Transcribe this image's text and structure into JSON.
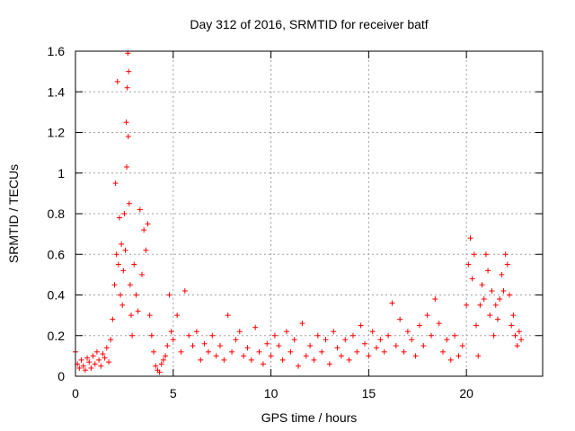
{
  "chart_data": {
    "type": "scatter",
    "title": "Day 312 of 2016, SRMTID for receiver batf",
    "xlabel": "GPS time / hours",
    "ylabel": "SRMTID / TECUs",
    "xlim": [
      0,
      23.9
    ],
    "ylim": [
      0,
      1.6
    ],
    "x_ticks": [
      0,
      5,
      10,
      15,
      20
    ],
    "x_tick_labels": [
      "0",
      "5",
      "10",
      "15",
      "20"
    ],
    "y_ticks": [
      0,
      0.2,
      0.4,
      0.6,
      0.8,
      1,
      1.2,
      1.4,
      1.6
    ],
    "y_tick_labels": [
      "0",
      "0.2",
      "0.4",
      "0.6",
      "0.8",
      "1",
      "1.2",
      "1.4",
      "1.6"
    ],
    "grid": true,
    "marker": "+",
    "color": "#ff0000",
    "series": [
      {
        "name": "SRMTID",
        "points": [
          [
            0.0,
            0.12
          ],
          [
            0.1,
            0.06
          ],
          [
            0.2,
            0.04
          ],
          [
            0.3,
            0.08
          ],
          [
            0.4,
            0.05
          ],
          [
            0.5,
            0.03
          ],
          [
            0.6,
            0.09
          ],
          [
            0.7,
            0.07
          ],
          [
            0.8,
            0.04
          ],
          [
            0.9,
            0.1
          ],
          [
            1.0,
            0.06
          ],
          [
            1.1,
            0.12
          ],
          [
            1.2,
            0.08
          ],
          [
            1.3,
            0.05
          ],
          [
            1.4,
            0.11
          ],
          [
            1.5,
            0.09
          ],
          [
            1.6,
            0.14
          ],
          [
            1.7,
            0.07
          ],
          [
            1.8,
            0.18
          ],
          [
            1.9,
            0.28
          ],
          [
            2.0,
            0.45
          ],
          [
            2.05,
            0.95
          ],
          [
            2.1,
            0.6
          ],
          [
            2.15,
            1.45
          ],
          [
            2.2,
            0.55
          ],
          [
            2.25,
            0.78
          ],
          [
            2.3,
            0.4
          ],
          [
            2.35,
            0.65
          ],
          [
            2.4,
            0.35
          ],
          [
            2.45,
            0.52
          ],
          [
            2.5,
            0.8
          ],
          [
            2.55,
            0.62
          ],
          [
            2.6,
            1.25
          ],
          [
            2.62,
            1.03
          ],
          [
            2.65,
            1.42
          ],
          [
            2.68,
            1.59
          ],
          [
            2.7,
            1.18
          ],
          [
            2.72,
            1.5
          ],
          [
            2.75,
            0.85
          ],
          [
            2.8,
            0.45
          ],
          [
            2.85,
            0.3
          ],
          [
            2.9,
            0.2
          ],
          [
            3.0,
            0.55
          ],
          [
            3.1,
            0.4
          ],
          [
            3.2,
            0.32
          ],
          [
            3.3,
            0.82
          ],
          [
            3.4,
            0.5
          ],
          [
            3.5,
            0.72
          ],
          [
            3.6,
            0.62
          ],
          [
            3.7,
            0.75
          ],
          [
            3.8,
            0.3
          ],
          [
            3.9,
            0.2
          ],
          [
            4.0,
            0.12
          ],
          [
            4.1,
            0.05
          ],
          [
            4.2,
            0.03
          ],
          [
            4.3,
            0.02
          ],
          [
            4.4,
            0.06
          ],
          [
            4.5,
            0.08
          ],
          [
            4.6,
            0.1
          ],
          [
            4.7,
            0.15
          ],
          [
            4.8,
            0.4
          ],
          [
            4.9,
            0.22
          ],
          [
            5.0,
            0.18
          ],
          [
            5.2,
            0.3
          ],
          [
            5.4,
            0.12
          ],
          [
            5.6,
            0.42
          ],
          [
            5.8,
            0.2
          ],
          [
            6.0,
            0.15
          ],
          [
            6.2,
            0.22
          ],
          [
            6.4,
            0.08
          ],
          [
            6.6,
            0.16
          ],
          [
            6.8,
            0.12
          ],
          [
            7.0,
            0.2
          ],
          [
            7.2,
            0.1
          ],
          [
            7.4,
            0.15
          ],
          [
            7.6,
            0.08
          ],
          [
            7.8,
            0.3
          ],
          [
            8.0,
            0.12
          ],
          [
            8.2,
            0.18
          ],
          [
            8.4,
            0.22
          ],
          [
            8.6,
            0.1
          ],
          [
            8.8,
            0.14
          ],
          [
            9.0,
            0.08
          ],
          [
            9.2,
            0.24
          ],
          [
            9.4,
            0.12
          ],
          [
            9.6,
            0.06
          ],
          [
            9.8,
            0.16
          ],
          [
            10.0,
            0.1
          ],
          [
            10.2,
            0.2
          ],
          [
            10.4,
            0.15
          ],
          [
            10.6,
            0.08
          ],
          [
            10.8,
            0.22
          ],
          [
            11.0,
            0.12
          ],
          [
            11.2,
            0.18
          ],
          [
            11.4,
            0.05
          ],
          [
            11.6,
            0.26
          ],
          [
            11.8,
            0.1
          ],
          [
            12.0,
            0.15
          ],
          [
            12.2,
            0.08
          ],
          [
            12.4,
            0.2
          ],
          [
            12.6,
            0.12
          ],
          [
            12.8,
            0.18
          ],
          [
            13.0,
            0.06
          ],
          [
            13.2,
            0.22
          ],
          [
            13.4,
            0.14
          ],
          [
            13.6,
            0.1
          ],
          [
            13.8,
            0.18
          ],
          [
            14.0,
            0.08
          ],
          [
            14.2,
            0.2
          ],
          [
            14.4,
            0.12
          ],
          [
            14.6,
            0.25
          ],
          [
            14.8,
            0.16
          ],
          [
            15.0,
            0.1
          ],
          [
            15.2,
            0.22
          ],
          [
            15.4,
            0.14
          ],
          [
            15.6,
            0.18
          ],
          [
            15.8,
            0.12
          ],
          [
            16.0,
            0.2
          ],
          [
            16.2,
            0.36
          ],
          [
            16.4,
            0.15
          ],
          [
            16.6,
            0.28
          ],
          [
            16.8,
            0.12
          ],
          [
            17.0,
            0.22
          ],
          [
            17.2,
            0.18
          ],
          [
            17.4,
            0.1
          ],
          [
            17.6,
            0.25
          ],
          [
            17.8,
            0.15
          ],
          [
            18.0,
            0.3
          ],
          [
            18.2,
            0.2
          ],
          [
            18.4,
            0.38
          ],
          [
            18.6,
            0.26
          ],
          [
            18.8,
            0.12
          ],
          [
            19.0,
            0.18
          ],
          [
            19.2,
            0.08
          ],
          [
            19.4,
            0.2
          ],
          [
            19.6,
            0.1
          ],
          [
            19.8,
            0.15
          ],
          [
            20.0,
            0.35
          ],
          [
            20.1,
            0.55
          ],
          [
            20.2,
            0.68
          ],
          [
            20.3,
            0.48
          ],
          [
            20.4,
            0.6
          ],
          [
            20.5,
            0.25
          ],
          [
            20.6,
            0.1
          ],
          [
            20.7,
            0.35
          ],
          [
            20.8,
            0.45
          ],
          [
            20.9,
            0.38
          ],
          [
            21.0,
            0.6
          ],
          [
            21.1,
            0.52
          ],
          [
            21.2,
            0.3
          ],
          [
            21.3,
            0.42
          ],
          [
            21.4,
            0.2
          ],
          [
            21.5,
            0.35
          ],
          [
            21.6,
            0.28
          ],
          [
            21.7,
            0.38
          ],
          [
            21.8,
            0.5
          ],
          [
            21.9,
            0.42
          ],
          [
            22.0,
            0.6
          ],
          [
            22.1,
            0.55
          ],
          [
            22.2,
            0.4
          ],
          [
            22.3,
            0.25
          ],
          [
            22.4,
            0.3
          ],
          [
            22.5,
            0.2
          ],
          [
            22.6,
            0.15
          ],
          [
            22.7,
            0.22
          ],
          [
            22.8,
            0.18
          ]
        ]
      }
    ]
  }
}
